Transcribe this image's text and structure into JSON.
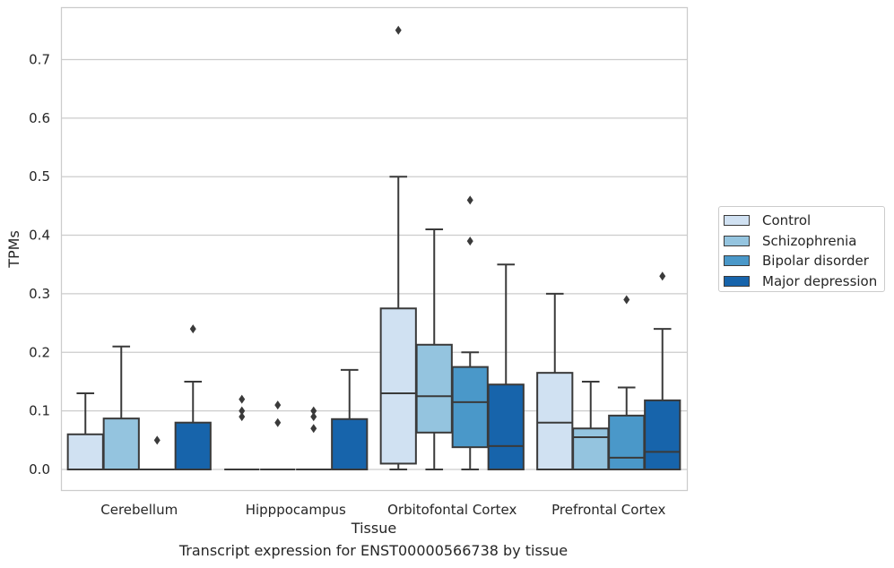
{
  "chart_data": {
    "type": "box",
    "title": "",
    "caption": "Transcript expression for ENST00000566738 by tissue",
    "xlabel": "Tissue",
    "ylabel": "TPMs",
    "ylim": [
      -0.036,
      0.79
    ],
    "yticks": [
      "0.0",
      "0.1",
      "0.2",
      "0.3",
      "0.4",
      "0.5",
      "0.6",
      "0.7"
    ],
    "grid": "horizontal",
    "legend_position": "right",
    "categories": [
      "Cerebellum",
      "Hipppocampus",
      "Orbitofontal Cortex",
      "Prefrontal Cortex"
    ],
    "series": [
      {
        "name": "Control",
        "color": "#d0e1f2",
        "boxes": [
          {
            "q1": 0.0,
            "median": 0.0,
            "q3": 0.06,
            "whisker_low": 0.0,
            "whisker_high": 0.13,
            "outliers": []
          },
          {
            "q1": 0.0,
            "median": 0.0,
            "q3": 0.0,
            "whisker_low": 0.0,
            "whisker_high": 0.0,
            "outliers": [
              0.09,
              0.1,
              0.12
            ]
          },
          {
            "q1": 0.01,
            "median": 0.13,
            "q3": 0.275,
            "whisker_low": 0.0,
            "whisker_high": 0.5,
            "outliers": [
              0.75
            ]
          },
          {
            "q1": 0.0,
            "median": 0.08,
            "q3": 0.165,
            "whisker_low": 0.0,
            "whisker_high": 0.3,
            "outliers": []
          }
        ]
      },
      {
        "name": "Schizophrenia",
        "color": "#94c4df",
        "boxes": [
          {
            "q1": 0.0,
            "median": 0.0,
            "q3": 0.087,
            "whisker_low": 0.0,
            "whisker_high": 0.21,
            "outliers": []
          },
          {
            "q1": 0.0,
            "median": 0.0,
            "q3": 0.0,
            "whisker_low": 0.0,
            "whisker_high": 0.0,
            "outliers": [
              0.08,
              0.11
            ]
          },
          {
            "q1": 0.063,
            "median": 0.125,
            "q3": 0.213,
            "whisker_low": 0.0,
            "whisker_high": 0.41,
            "outliers": []
          },
          {
            "q1": 0.0,
            "median": 0.055,
            "q3": 0.07,
            "whisker_low": 0.0,
            "whisker_high": 0.15,
            "outliers": []
          }
        ]
      },
      {
        "name": "Bipolar disorder",
        "color": "#4a98c9",
        "boxes": [
          {
            "q1": 0.0,
            "median": 0.0,
            "q3": 0.0,
            "whisker_low": 0.0,
            "whisker_high": 0.0,
            "outliers": [
              0.05
            ]
          },
          {
            "q1": 0.0,
            "median": 0.0,
            "q3": 0.0,
            "whisker_low": 0.0,
            "whisker_high": 0.0,
            "outliers": [
              0.07,
              0.09,
              0.1
            ]
          },
          {
            "q1": 0.038,
            "median": 0.115,
            "q3": 0.175,
            "whisker_low": 0.0,
            "whisker_high": 0.2,
            "outliers": [
              0.39,
              0.46
            ]
          },
          {
            "q1": 0.0,
            "median": 0.02,
            "q3": 0.092,
            "whisker_low": 0.0,
            "whisker_high": 0.14,
            "outliers": [
              0.29
            ]
          }
        ]
      },
      {
        "name": "Major depression",
        "color": "#1764ab",
        "boxes": [
          {
            "q1": 0.0,
            "median": 0.0,
            "q3": 0.08,
            "whisker_low": 0.0,
            "whisker_high": 0.15,
            "outliers": [
              0.24
            ]
          },
          {
            "q1": 0.0,
            "median": 0.0,
            "q3": 0.086,
            "whisker_low": 0.0,
            "whisker_high": 0.17,
            "outliers": []
          },
          {
            "q1": 0.0,
            "median": 0.04,
            "q3": 0.145,
            "whisker_low": 0.0,
            "whisker_high": 0.35,
            "outliers": []
          },
          {
            "q1": 0.0,
            "median": 0.03,
            "q3": 0.118,
            "whisker_low": 0.0,
            "whisker_high": 0.24,
            "outliers": [
              0.33
            ]
          }
        ]
      }
    ]
  }
}
